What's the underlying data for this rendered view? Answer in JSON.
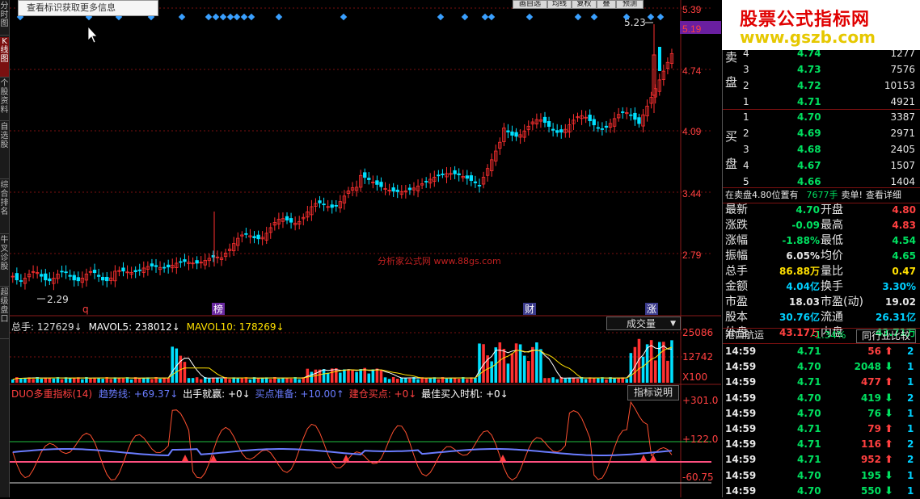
{
  "tooltip": "查看标识获取更多信息",
  "toolbar": [
    "画自选",
    "均线",
    "复权",
    "叠",
    "预测"
  ],
  "left_tabs": [
    "分时图",
    "K线图",
    "个股资料",
    "自选股",
    "综合排名",
    "牛叉诊股",
    "超级盘口"
  ],
  "price_axis": [
    "5.39",
    "5.19",
    "4.74",
    "4.09",
    "3.44",
    "2.79"
  ],
  "price_labels": {
    "high": "5.23",
    "low": "2.29"
  },
  "watermark": "分析家公式网 www.88gs.com",
  "event_markers": [
    "q",
    "榜",
    "财",
    "涨"
  ],
  "volume": {
    "title": "总手: 127629↓",
    "ma5": "MAVOL5: 238012↓",
    "ma10": "MAVOL10: 178269↓",
    "dropdown": "成交量",
    "axis": [
      "25086",
      "12742",
      "X100"
    ]
  },
  "indicator": {
    "name": "DUO多重指标(14)",
    "trend": "趋势线: +69.37↓",
    "signal1": "出手就赢: +0↓",
    "signal2": "买点准备: +10.00↑",
    "signal3": "建仓买点: +0↓",
    "signal4": "最佳买入时机: +0↓",
    "button": "指标说明",
    "axis": [
      "+301.0",
      "+122.0",
      "-60.75"
    ]
  },
  "logo": {
    "line1": "股票公式指标网",
    "line2": "www.gszb.com"
  },
  "orderbook": {
    "sell_label": [
      "卖",
      "盘"
    ],
    "buy_label": [
      "买",
      "盘"
    ],
    "sells": [
      {
        "n": "4",
        "p": "4.74",
        "v": "1277"
      },
      {
        "n": "3",
        "p": "4.73",
        "v": "7576"
      },
      {
        "n": "2",
        "p": "4.72",
        "v": "10153"
      },
      {
        "n": "1",
        "p": "4.71",
        "v": "4921"
      }
    ],
    "buys": [
      {
        "n": "1",
        "p": "4.70",
        "v": "3387"
      },
      {
        "n": "2",
        "p": "4.69",
        "v": "2971"
      },
      {
        "n": "3",
        "p": "4.68",
        "v": "2405"
      },
      {
        "n": "4",
        "p": "4.67",
        "v": "1507"
      },
      {
        "n": "5",
        "p": "4.66",
        "v": "1404"
      }
    ],
    "notice_a": "在卖盘4.80位置有",
    "notice_b": "7677手",
    "notice_c": "卖单!",
    "notice_link": "查看详细"
  },
  "quote": [
    {
      "k1": "最新",
      "v1": "4.70",
      "c1": "g",
      "k2": "开盘",
      "v2": "4.80",
      "c2": "r"
    },
    {
      "k1": "涨跌",
      "v1": "-0.09",
      "c1": "g",
      "k2": "最高",
      "v2": "4.83",
      "c2": "r"
    },
    {
      "k1": "涨幅",
      "v1": "-1.88%",
      "c1": "g",
      "k2": "最低",
      "v2": "4.54",
      "c2": "g"
    },
    {
      "k1": "振幅",
      "v1": "6.05%",
      "c1": "w",
      "k2": "均价",
      "v2": "4.65",
      "c2": "g"
    },
    {
      "k1": "总手",
      "v1": "86.88万",
      "c1": "y",
      "k2": "量比",
      "v2": "0.47",
      "c2": "y"
    },
    {
      "k1": "金额",
      "v1": "4.04亿",
      "c1": "c",
      "k2": "换手",
      "v2": "3.30%",
      "c2": "c"
    },
    {
      "k1": "市盈",
      "v1": "18.03",
      "c1": "w",
      "k2": "市盈(动)",
      "v2": "19.02",
      "c2": "w"
    },
    {
      "k1": "股本",
      "v1": "30.76亿",
      "c1": "c",
      "k2": "流通",
      "v2": "26.31亿",
      "c2": "c"
    },
    {
      "k1": "外盘",
      "v1": "43.17万",
      "c1": "r",
      "k2": "内盘",
      "v2": "43.71万",
      "c2": "g"
    }
  ],
  "sector": {
    "name": "港口航运",
    "change": "-1.34%",
    "button": "同行业比较"
  },
  "ticks": [
    {
      "t": "14:59",
      "p": "4.71",
      "v": "56",
      "d": "up",
      "n": "2"
    },
    {
      "t": "14:59",
      "p": "4.70",
      "v": "2048",
      "d": "down",
      "n": "1"
    },
    {
      "t": "14:59",
      "p": "4.71",
      "v": "477",
      "d": "up",
      "n": "1"
    },
    {
      "t": "14:59",
      "p": "4.70",
      "v": "419",
      "d": "down",
      "n": "2"
    },
    {
      "t": "14:59",
      "p": "4.70",
      "v": "76",
      "d": "down",
      "n": "1"
    },
    {
      "t": "14:59",
      "p": "4.71",
      "v": "79",
      "d": "up",
      "n": "1"
    },
    {
      "t": "14:59",
      "p": "4.71",
      "v": "116",
      "d": "up",
      "n": "2"
    },
    {
      "t": "14:59",
      "p": "4.71",
      "v": "952",
      "d": "up",
      "n": "2"
    },
    {
      "t": "14:59",
      "p": "4.70",
      "v": "195",
      "d": "down",
      "n": "1"
    },
    {
      "t": "14:59",
      "p": "4.70",
      "v": "550",
      "d": "down",
      "n": "1"
    }
  ],
  "colors": {
    "up": "#ff3030",
    "down": "#00e0ff",
    "ma5": "#ffffff",
    "ma10": "#ffe000",
    "accent": "#7a1010"
  }
}
